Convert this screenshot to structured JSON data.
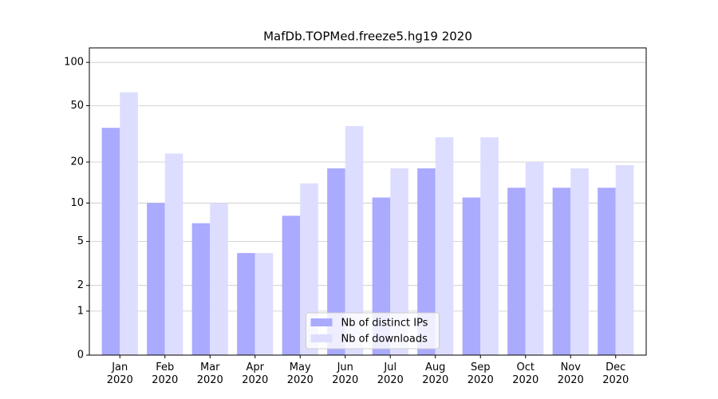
{
  "chart_data": {
    "type": "bar",
    "title": "MafDb.TOPMed.freeze5.hg19 2020",
    "categories": [
      "Jan\n2020",
      "Feb\n2020",
      "Mar\n2020",
      "Apr\n2020",
      "May\n2020",
      "Jun\n2020",
      "Jul\n2020",
      "Aug\n2020",
      "Sep\n2020",
      "Oct\n2020",
      "Nov\n2020",
      "Dec\n2020"
    ],
    "series": [
      {
        "name": "Nb of distinct IPs",
        "color": "#aaaaff",
        "values": [
          35,
          10,
          7,
          4,
          8,
          18,
          11,
          18,
          11,
          13,
          13,
          13
        ]
      },
      {
        "name": "Nb of downloads",
        "color": "#ddddff",
        "values": [
          62,
          23,
          10,
          4,
          14,
          36,
          18,
          30,
          30,
          20,
          18,
          19
        ]
      }
    ],
    "yscale": "log1p",
    "ylim": [
      0,
      126
    ],
    "yticks": [
      0,
      1,
      2,
      5,
      10,
      20,
      50,
      100
    ],
    "grid": true,
    "legend": "lower center"
  }
}
